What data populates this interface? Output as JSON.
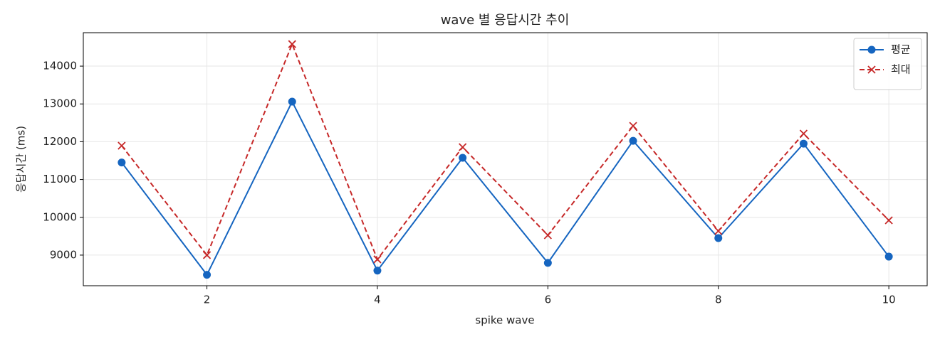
{
  "chart_data": {
    "type": "line",
    "title": "wave 별 응답시간 추이",
    "x_label": "spike wave",
    "y_label": "응답시간 (ms)",
    "x": [
      1,
      2,
      3,
      4,
      5,
      6,
      7,
      8,
      9,
      10
    ],
    "series": [
      {
        "name": "평균",
        "color": "#1565c0",
        "marker": "o",
        "linestyle": "solid",
        "values": [
          11450,
          8480,
          13060,
          8590,
          11575,
          8795,
          12025,
          9450,
          11950,
          8960
        ]
      },
      {
        "name": "최대",
        "color": "#c62828",
        "marker": "x",
        "linestyle": "dashed",
        "values": [
          11895,
          9000,
          14583,
          8887,
          11857,
          9526,
          12420,
          9639,
          12214,
          9921
        ]
      }
    ],
    "xlim": [
      0.55,
      10.45
    ],
    "ylim": [
      8190,
      14885
    ],
    "xticks": [
      2,
      4,
      6,
      8,
      10
    ],
    "yticks": [
      9000,
      10000,
      11000,
      12000,
      13000,
      14000
    ],
    "grid": true,
    "legend": "upper right"
  }
}
